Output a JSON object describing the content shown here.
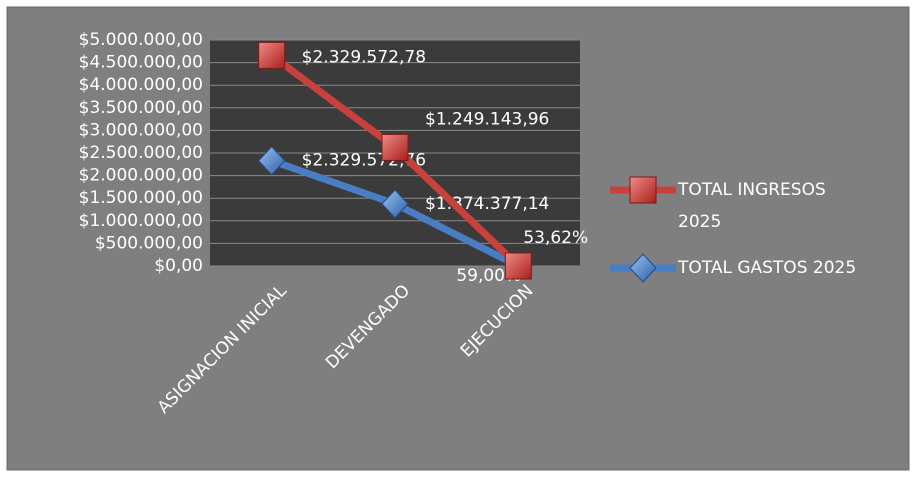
{
  "chart_data": {
    "type": "line",
    "stacked": true,
    "categories": [
      "ASIGNACION INICIAL",
      "DEVENGADO",
      "EJECUCION"
    ],
    "series": [
      {
        "name": "TOTAL GASTOS 2025",
        "color": "#4a7ec4",
        "marker": "diamond",
        "values": [
          2329572.76,
          1374377.14,
          59.0
        ],
        "value_labels": [
          "$2.329.572,76",
          "$1.374.377,14",
          "59,00%"
        ]
      },
      {
        "name": "TOTAL INGRESOS 2025",
        "color": "#c9403c",
        "marker": "square",
        "values": [
          2329572.78,
          1249143.96,
          53.62
        ],
        "value_labels": [
          "$2.329.572,78",
          "$1.249.143,96",
          "53,62%"
        ]
      }
    ],
    "ylim": [
      0,
      5000000
    ],
    "yticks": [
      {
        "value": 0,
        "label": "$0,00"
      },
      {
        "value": 500000,
        "label": "$500.000,00"
      },
      {
        "value": 1000000,
        "label": "$1.000.000,00"
      },
      {
        "value": 1500000,
        "label": "$1.500.000,00"
      },
      {
        "value": 2000000,
        "label": "$2.000.000,00"
      },
      {
        "value": 2500000,
        "label": "$2.500.000,00"
      },
      {
        "value": 3000000,
        "label": "$3.000.000,00"
      },
      {
        "value": 3500000,
        "label": "$3.500.000,00"
      },
      {
        "value": 4000000,
        "label": "$4.000.000,00"
      },
      {
        "value": 4500000,
        "label": "$4.500.000,00"
      },
      {
        "value": 5000000,
        "label": "$5.000.000,00"
      }
    ],
    "grid": true,
    "legend": "right"
  }
}
